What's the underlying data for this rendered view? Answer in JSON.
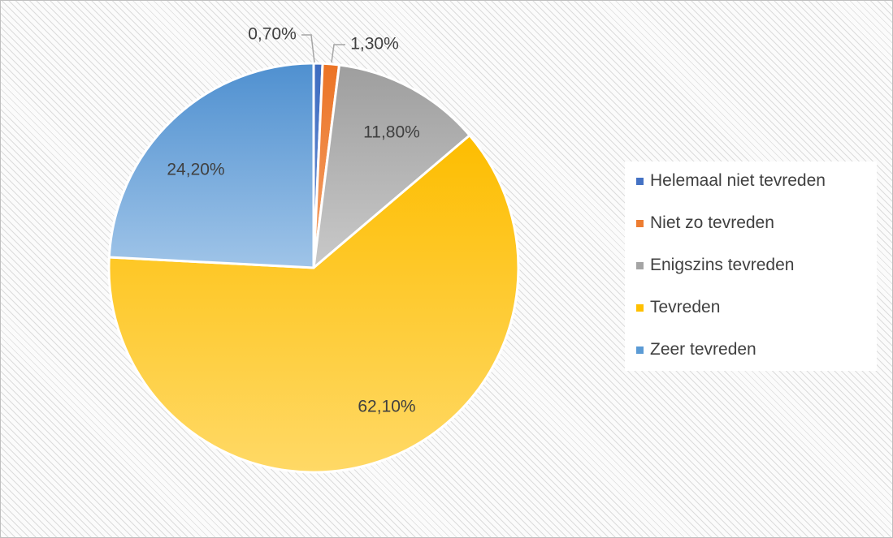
{
  "chart_data": {
    "type": "pie",
    "title": "",
    "categories": [
      "Helemaal niet tevreden",
      "Niet zo tevreden",
      "Enigszins tevreden",
      "Tevreden",
      "Zeer tevreden"
    ],
    "values": [
      0.7,
      1.3,
      11.8,
      62.1,
      24.2
    ],
    "labels": [
      "0,70%",
      "1,30%",
      "11,80%",
      "62,10%",
      "24,20%"
    ],
    "colors": [
      "#4472c4",
      "#ed7d31",
      "#a5a5a5",
      "#ffc000",
      "#5b9bd5"
    ],
    "legend_position": "right",
    "start_angle": "top, clockwise"
  },
  "legend": {
    "items": [
      {
        "label": "Helemaal niet tevreden",
        "color": "#4472c4"
      },
      {
        "label": "Niet zo tevreden",
        "color": "#ed7d31"
      },
      {
        "label": "Enigszins tevreden",
        "color": "#a5a5a5"
      },
      {
        "label": "Tevreden",
        "color": "#ffc000"
      },
      {
        "label": "Zeer tevreden",
        "color": "#5b9bd5"
      }
    ]
  }
}
